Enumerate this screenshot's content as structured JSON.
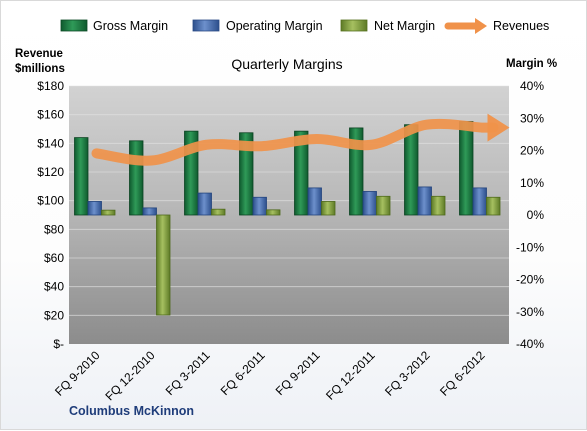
{
  "chart_data": {
    "type": "bar",
    "title": "Quarterly Margins",
    "company": "Columbus McKinnon",
    "categories": [
      "FQ 9-2010",
      "FQ 12-2010",
      "FQ 3-2011",
      "FQ 6-2011",
      "FQ 9-2011",
      "FQ 12-2011",
      "FQ 3-2012",
      "FQ 6-2012"
    ],
    "y_left": {
      "label_line1": "Revenue",
      "label_line2": "$millions",
      "ylim": [
        0,
        180
      ],
      "ticks": [
        0,
        20,
        40,
        60,
        80,
        100,
        120,
        140,
        160,
        180
      ],
      "tick_labels": [
        "$-",
        "$20",
        "$40",
        "$60",
        "$80",
        "$100",
        "$120",
        "$140",
        "$160",
        "$180"
      ]
    },
    "y_right": {
      "label": "Margin %",
      "ylim": [
        -40,
        40
      ],
      "ticks": [
        -40,
        -30,
        -20,
        -10,
        0,
        10,
        20,
        30,
        40
      ],
      "tick_labels": [
        "-40%",
        "-30%",
        "-20%",
        "-10%",
        "0%",
        "10%",
        "20%",
        "30%",
        "40%"
      ]
    },
    "series": [
      {
        "name": "Gross Margin",
        "axis": "right",
        "kind": "bar",
        "color": "#1e7b45",
        "values": [
          24,
          23,
          26,
          25.5,
          26,
          27,
          28,
          29
        ]
      },
      {
        "name": "Operating Margin",
        "axis": "right",
        "kind": "bar",
        "color": "#4a6fb0",
        "values": [
          4.2,
          2.2,
          6.8,
          5.5,
          8.4,
          7.3,
          8.7,
          8.4
        ]
      },
      {
        "name": "Net Margin",
        "axis": "right",
        "kind": "bar",
        "color": "#7e9a3c",
        "values": [
          1.5,
          -31,
          1.8,
          1.6,
          4.2,
          5.8,
          5.8,
          5.5
        ]
      },
      {
        "name": "Revenues",
        "axis": "left",
        "kind": "line",
        "color": "#f0924a",
        "values": [
          133,
          128,
          139,
          138,
          143,
          139,
          153,
          151
        ]
      }
    ],
    "grid": true,
    "legend_position": "top"
  }
}
